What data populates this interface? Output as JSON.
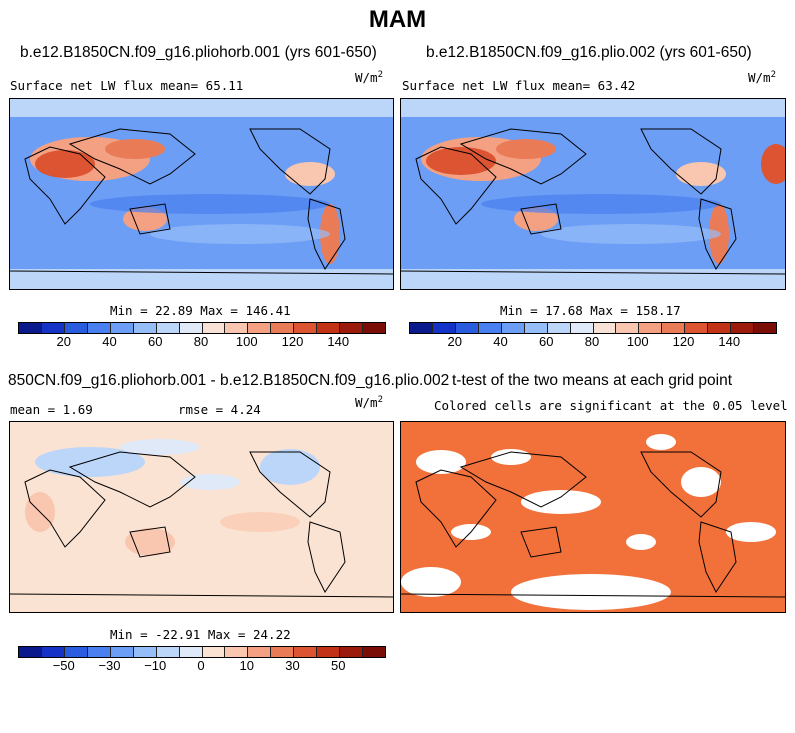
{
  "title": "MAM",
  "panels": [
    {
      "title": "b.e12.B1850CN.f09_g16.pliohorb.001 (yrs 601-650)",
      "subtitle": "Surface net LW flux mean=  65.11",
      "units": "W/m",
      "units_exp": "2",
      "minmax": "Min =  22.89 Max = 146.41"
    },
    {
      "title": "b.e12.B1850CN.f09_g16.plio.002 (yrs 601-650)",
      "subtitle": "Surface net LW flux mean=  63.42",
      "units": "W/m",
      "units_exp": "2",
      "minmax": "Min =  17.68 Max = 158.17"
    },
    {
      "title": "850CN.f09_g16.pliohorb.001 - b.e12.B1850CN.f09_g16.plio.002",
      "mean_label": "mean =   1.69",
      "rmse_label": "rmse =   4.24",
      "units": "W/m",
      "units_exp": "2",
      "minmax": "Min = -22.91 Max =  24.22"
    },
    {
      "title": "t-test of the two means at each grid point",
      "subtitle": "Colored cells are significant at the 0.05 level"
    }
  ],
  "colorbar_abs": {
    "colors": [
      "#0a1a8c",
      "#1633c8",
      "#2a5ce0",
      "#4a7ff0",
      "#6d9ef5",
      "#95bdf8",
      "#bcd6fa",
      "#dfe9f7",
      "#f8e2d6",
      "#f9c7b0",
      "#f3a182",
      "#ea7b57",
      "#dc5432",
      "#c23217",
      "#9c1a0c",
      "#7a0d05"
    ],
    "tick_labels": [
      "20",
      "40",
      "60",
      "80",
      "100",
      "120",
      "140"
    ]
  },
  "colorbar_diff": {
    "colors": [
      "#0a1a8c",
      "#1633c8",
      "#2a5ce0",
      "#4a7ff0",
      "#6d9ef5",
      "#95bdf8",
      "#bcd6fa",
      "#dfe9f7",
      "#fbe3d3",
      "#f9c7b0",
      "#f3a182",
      "#ea7b57",
      "#dc5432",
      "#c23217",
      "#9c1a0c",
      "#7a0d05"
    ],
    "tick_labels": [
      "−50",
      "−30",
      "−10",
      "0",
      "10",
      "30",
      "50"
    ]
  },
  "map_colors": {
    "ocean_abs": "#6d9ef5",
    "ocean_diff": "#fbe3d3",
    "signif": "#f2713a"
  }
}
